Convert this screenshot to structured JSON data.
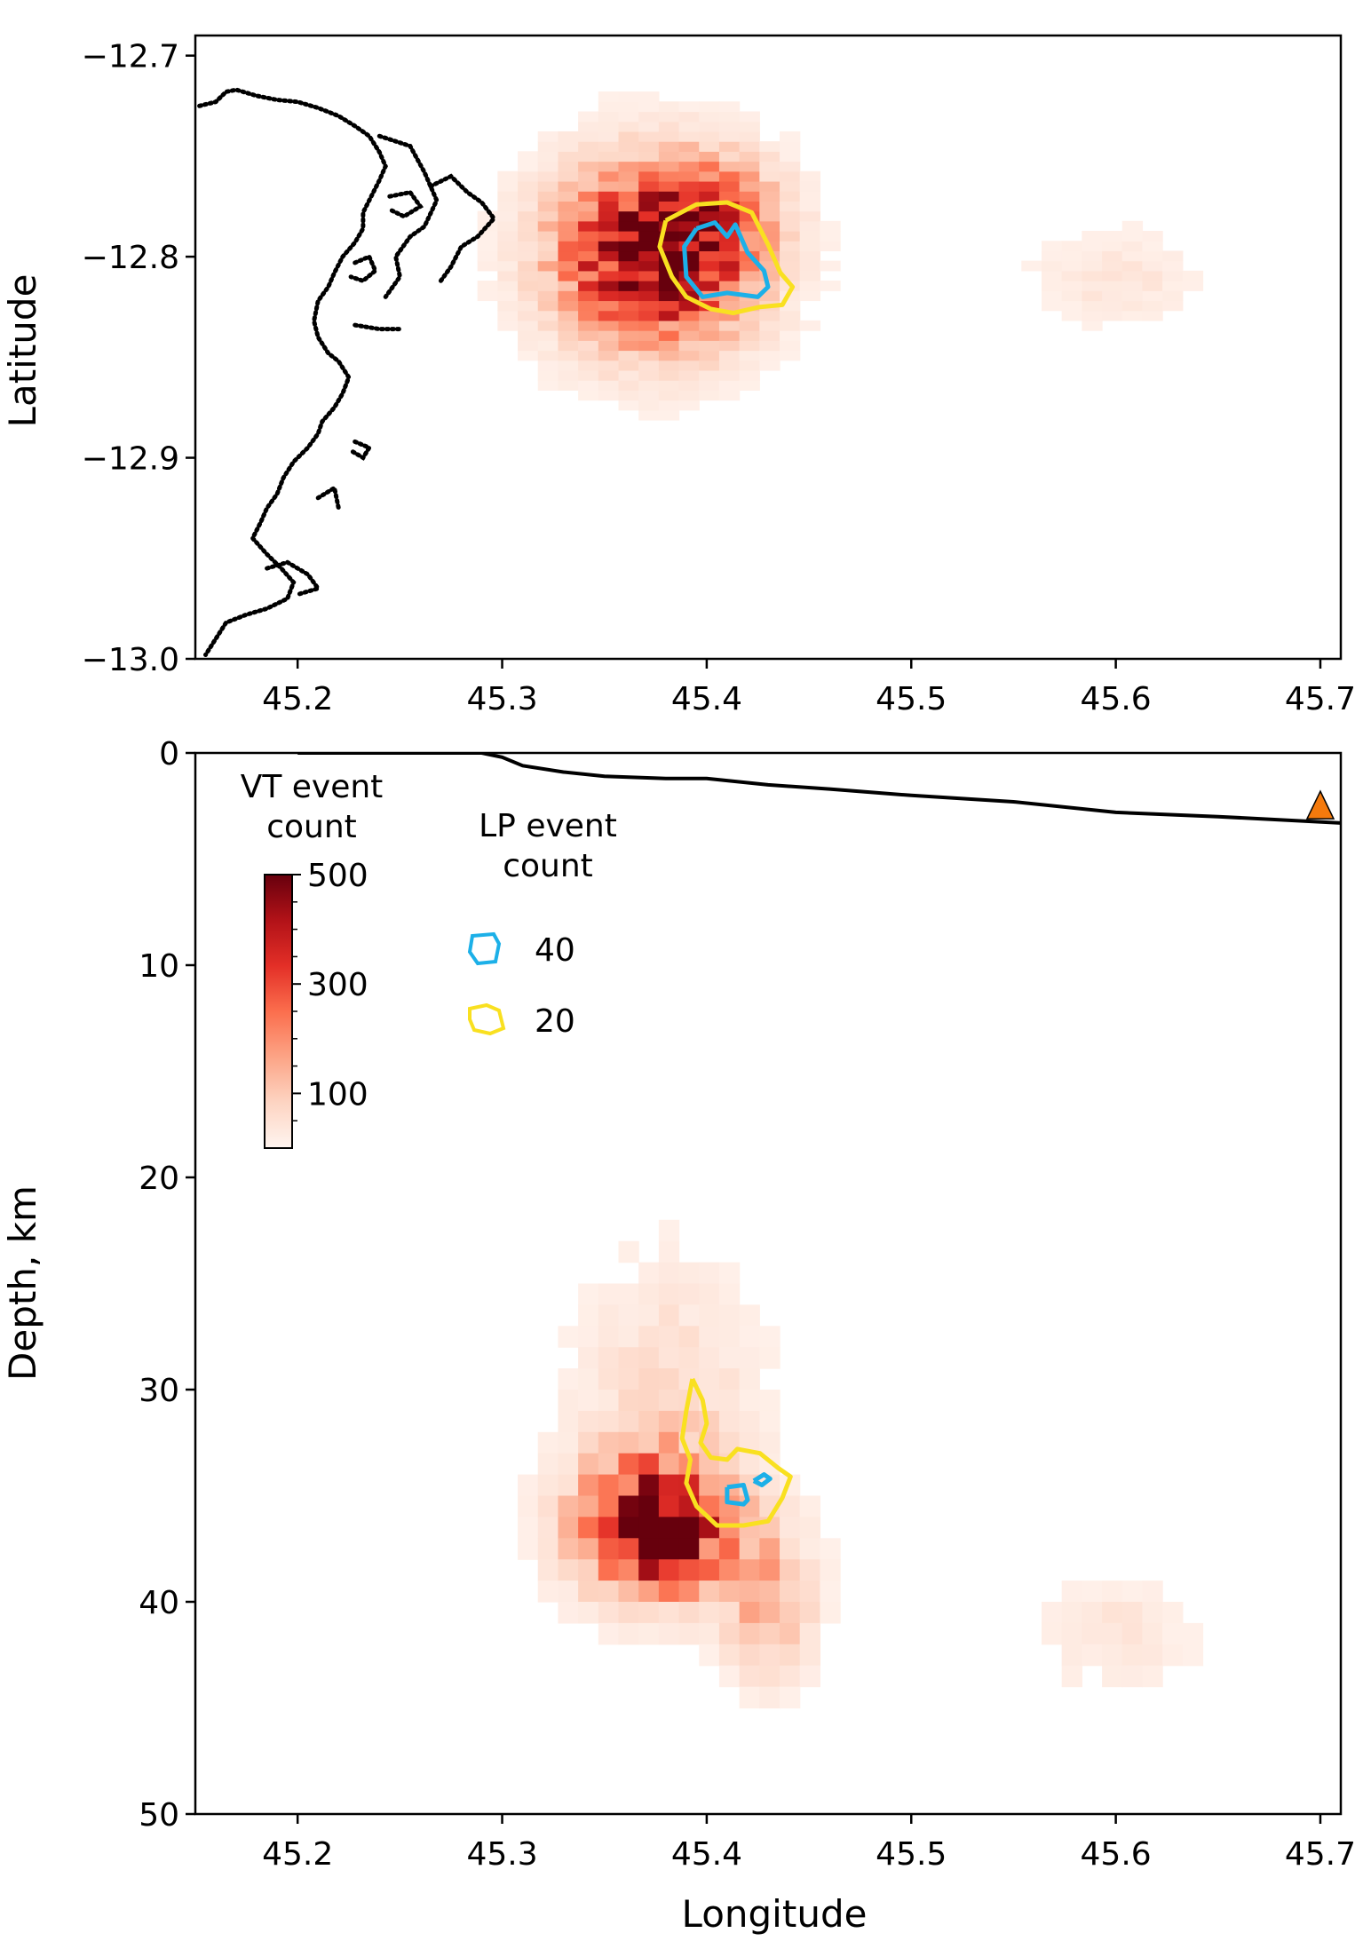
{
  "chart_data": [
    {
      "type": "heatmap",
      "panel": "map",
      "xlabel": "",
      "ylabel": "Latitude",
      "xlim": [
        45.15,
        45.71
      ],
      "ylim": [
        -13.0,
        -12.69
      ],
      "xticks": [
        45.2,
        45.3,
        45.4,
        45.5,
        45.6,
        45.7
      ],
      "xtick_labels": [
        "45.2",
        "45.3",
        "45.4",
        "45.5",
        "45.6",
        "45.7"
      ],
      "yticks": [
        -12.7,
        -12.8,
        -12.9,
        -13.0
      ],
      "ytick_labels": [
        "−12.7",
        "−12.8",
        "−12.9",
        "−13.0"
      ],
      "vt_clusters": [
        {
          "lon": 45.375,
          "lat": -12.799,
          "rx": 0.065,
          "ry": 0.06,
          "peak": 520
        },
        {
          "lon": 45.405,
          "lat": -12.775,
          "rx": 0.04,
          "ry": 0.035,
          "peak": 150
        },
        {
          "lon": 45.6,
          "lat": -12.81,
          "rx": 0.05,
          "ry": 0.03,
          "peak": 45
        }
      ],
      "lp_contours": [
        {
          "level": 40,
          "color": "#1cb0e8",
          "points": [
            [
              45.395,
              -12.786
            ],
            [
              45.404,
              -12.783
            ],
            [
              45.41,
              -12.79
            ],
            [
              45.414,
              -12.784
            ],
            [
              45.42,
              -12.798
            ],
            [
              45.428,
              -12.807
            ],
            [
              45.43,
              -12.815
            ],
            [
              45.425,
              -12.82
            ],
            [
              45.41,
              -12.818
            ],
            [
              45.398,
              -12.82
            ],
            [
              45.39,
              -12.81
            ],
            [
              45.389,
              -12.795
            ],
            [
              45.395,
              -12.786
            ]
          ]
        },
        {
          "level": 20,
          "color": "#f9e020",
          "points": [
            [
              45.38,
              -12.782
            ],
            [
              45.395,
              -12.774
            ],
            [
              45.41,
              -12.773
            ],
            [
              45.422,
              -12.778
            ],
            [
              45.43,
              -12.794
            ],
            [
              45.436,
              -12.808
            ],
            [
              45.442,
              -12.815
            ],
            [
              45.437,
              -12.824
            ],
            [
              45.426,
              -12.825
            ],
            [
              45.413,
              -12.828
            ],
            [
              45.402,
              -12.826
            ],
            [
              45.39,
              -12.82
            ],
            [
              45.383,
              -12.81
            ],
            [
              45.377,
              -12.795
            ],
            [
              45.38,
              -12.782
            ]
          ]
        }
      ]
    },
    {
      "type": "heatmap",
      "panel": "depth_section",
      "xlabel": "Longitude",
      "ylabel": "Depth, km",
      "xlim": [
        45.15,
        45.71
      ],
      "ylim": [
        50,
        0
      ],
      "xticks": [
        45.2,
        45.3,
        45.4,
        45.5,
        45.6,
        45.7
      ],
      "xtick_labels": [
        "45.2",
        "45.3",
        "45.4",
        "45.5",
        "45.6",
        "45.7"
      ],
      "yticks": [
        0,
        10,
        20,
        30,
        40,
        50
      ],
      "ytick_labels": [
        "0",
        "10",
        "20",
        "30",
        "40",
        "50"
      ],
      "vt_clusters": [
        {
          "lon": 45.375,
          "depth": 36.5,
          "rx": 0.05,
          "ry": 4.2,
          "peak": 520
        },
        {
          "lon": 45.38,
          "depth": 31,
          "rx": 0.06,
          "ry": 9,
          "peak": 70
        },
        {
          "lon": 45.43,
          "depth": 40,
          "rx": 0.03,
          "ry": 5,
          "peak": 150
        },
        {
          "lon": 45.6,
          "depth": 41.5,
          "rx": 0.05,
          "ry": 3.5,
          "peak": 40
        }
      ],
      "lp_contours": [
        {
          "level": 20,
          "color": "#f9e020",
          "points": [
            [
              45.393,
              29.5
            ],
            [
              45.398,
              30.5
            ],
            [
              45.4,
              31.6
            ],
            [
              45.397,
              32.5
            ],
            [
              45.402,
              33.2
            ],
            [
              45.41,
              33.3
            ],
            [
              45.415,
              32.8
            ],
            [
              45.426,
              33
            ],
            [
              45.435,
              33.7
            ],
            [
              45.441,
              34.1
            ],
            [
              45.437,
              35.1
            ],
            [
              45.43,
              36.2
            ],
            [
              45.418,
              36.4
            ],
            [
              45.405,
              36.4
            ],
            [
              45.395,
              35.5
            ],
            [
              45.39,
              34.4
            ],
            [
              45.392,
              33.3
            ],
            [
              45.388,
              32.3
            ],
            [
              45.39,
              31
            ],
            [
              45.393,
              29.5
            ]
          ]
        },
        {
          "level": 40,
          "color": "#1cb0e8",
          "points": [
            [
              45.41,
              34.6
            ],
            [
              45.418,
              34.5
            ],
            [
              45.42,
              35.2
            ],
            [
              45.418,
              35.4
            ],
            [
              45.41,
              35.3
            ],
            [
              45.41,
              34.6
            ]
          ]
        },
        {
          "level": 40,
          "color": "#1cb0e8",
          "points": [
            [
              45.423,
              34.3
            ],
            [
              45.428,
              34.0
            ],
            [
              45.431,
              34.2
            ],
            [
              45.427,
              34.5
            ],
            [
              45.423,
              34.3
            ]
          ]
        }
      ],
      "topography_profile": [
        [
          45.2,
          0
        ],
        [
          45.29,
          0
        ],
        [
          45.3,
          0.2
        ],
        [
          45.31,
          0.6
        ],
        [
          45.33,
          0.9
        ],
        [
          45.35,
          1.1
        ],
        [
          45.38,
          1.2
        ],
        [
          45.4,
          1.2
        ],
        [
          45.43,
          1.5
        ],
        [
          45.46,
          1.7
        ],
        [
          45.5,
          2.0
        ],
        [
          45.55,
          2.3
        ],
        [
          45.6,
          2.8
        ],
        [
          45.65,
          3.0
        ],
        [
          45.71,
          3.3
        ]
      ],
      "marker": {
        "shape": "triangle",
        "color": "#f47a0d",
        "lon": 45.7,
        "depth": 2.6
      }
    }
  ],
  "colorbar": {
    "title_line1": "VT event",
    "title_line2": "count",
    "ticks": [
      500,
      300,
      100
    ],
    "tick_labels": [
      "500",
      "300",
      "100"
    ],
    "range": [
      0,
      500
    ],
    "colors": [
      "#fff5f0",
      "#fdd4c2",
      "#fca486",
      "#fb6e4d",
      "#e32f27",
      "#b21218",
      "#67000d"
    ]
  },
  "lp_legend": {
    "title_line1": "LP event",
    "title_line2": "count",
    "items": [
      {
        "label": "40",
        "color": "#1cb0e8"
      },
      {
        "label": "20",
        "color": "#f9e020"
      }
    ]
  }
}
